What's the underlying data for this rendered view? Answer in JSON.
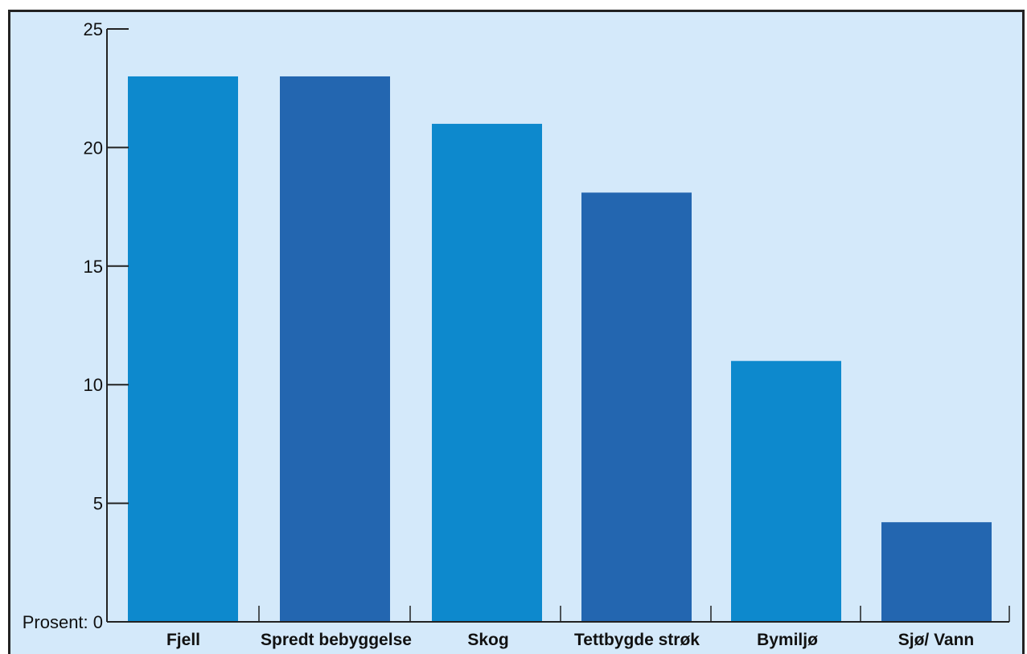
{
  "chart_data": {
    "type": "bar",
    "categories": [
      "Fjell",
      "Spredt bebyggelse",
      "Skog",
      "Tettbygde strøk",
      "Bymiljø",
      "Sjø/ Vann"
    ],
    "values": [
      23,
      23,
      21,
      18.1,
      11,
      4.2
    ],
    "ylabel": "Prosent:",
    "ylim": [
      0,
      25
    ],
    "yticks": [
      0,
      5,
      10,
      15,
      20,
      25
    ],
    "grid": false,
    "legend": "none",
    "colors": [
      "#0d89cd",
      "#2366b0"
    ],
    "background": "#d4e9fa"
  }
}
